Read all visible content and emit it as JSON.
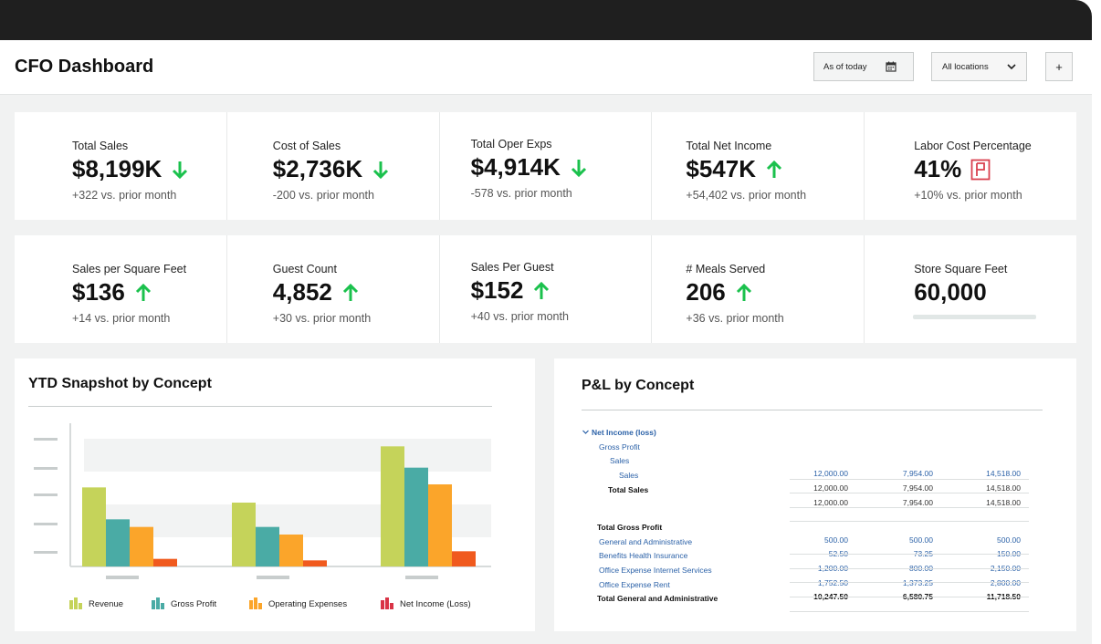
{
  "header": {
    "title": "CFO Dashboard",
    "date_filter": "As of today",
    "location_filter": "All locations",
    "add_label": "+"
  },
  "kpis_row1": [
    {
      "label": "Total Sales",
      "value": "$8,199K",
      "trend": "down",
      "sub": "+322 vs. prior month"
    },
    {
      "label": "Cost of Sales",
      "value": "$2,736K",
      "trend": "down",
      "sub": "-200 vs. prior month"
    },
    {
      "label": "Total Oper Exps",
      "value": "$4,914K",
      "trend": "down",
      "sub": "-578 vs. prior month"
    },
    {
      "label": "Total Net Income",
      "value": "$547K",
      "trend": "up",
      "sub": "+54,402 vs. prior month"
    },
    {
      "label": "Labor Cost Percentage",
      "value": "41%",
      "trend": "flag",
      "sub": "+10% vs. prior month"
    }
  ],
  "kpis_row2": [
    {
      "label": "Sales per Square Feet",
      "value": "$136",
      "trend": "up",
      "sub": "+14 vs. prior month"
    },
    {
      "label": "Guest Count",
      "value": "4,852",
      "trend": "up",
      "sub": "+30 vs. prior month"
    },
    {
      "label": "Sales Per Guest",
      "value": "$152",
      "trend": "up",
      "sub": "+40 vs. prior month"
    },
    {
      "label": "# Meals Served",
      "value": "206",
      "trend": "up",
      "sub": "+36 vs. prior month"
    },
    {
      "label": "Store Square Feet",
      "value": "60,000",
      "trend": "none",
      "sub": ""
    }
  ],
  "colors": {
    "trend_arrow": "#1bc14d",
    "flag": "#d9404e",
    "revenue": "#c5d35a",
    "gross_profit": "#4aaba5",
    "operating_expenses": "#fba52a",
    "net_income": "#f05a1e",
    "net_income_legend": "#d93446",
    "link_blue": "#2c62a8"
  },
  "ytd_panel": {
    "title": "YTD Snapshot by Concept"
  },
  "chart_data": {
    "type": "bar",
    "categories": [
      "",
      "",
      ""
    ],
    "series": [
      {
        "name": "Revenue",
        "values": [
          52,
          42,
          79
        ]
      },
      {
        "name": "Gross Profit",
        "values": [
          31,
          26,
          65
        ]
      },
      {
        "name": "Operating Expenses",
        "values": [
          26,
          21,
          54
        ]
      },
      {
        "name": "Net Income (Loss)",
        "values": [
          5,
          4,
          10
        ]
      }
    ],
    "ylim": [
      0,
      90
    ],
    "title": "",
    "xlabel": "",
    "ylabel": "",
    "grid": true,
    "legend": "bottom"
  },
  "pl_panel": {
    "title": "P&L by Concept",
    "rows": [
      {
        "label": "Net Income (loss)",
        "indent": 0,
        "style": "blue-bold",
        "expander": true,
        "values": []
      },
      {
        "label": "Gross Profit",
        "indent": 1,
        "style": "blue",
        "values": []
      },
      {
        "label": "Sales",
        "indent": 2,
        "style": "blue",
        "values": []
      },
      {
        "label": "Sales",
        "indent": 3,
        "style": "blue",
        "values": [
          "12,000.00",
          "7,954.00",
          "14,518.00"
        ]
      },
      {
        "label": "Total Sales",
        "indent": 2,
        "style": "bold",
        "values": [
          "12,000.00",
          "7,954.00",
          "14,518.00"
        ]
      },
      {
        "label": "",
        "indent": 0,
        "style": "plain",
        "values": [
          "12,000.00",
          "7,954.00",
          "14,518.00"
        ]
      },
      {
        "label": "Total Gross Profit",
        "indent": 1,
        "style": "bold",
        "values": []
      },
      {
        "label": "General and Administrative",
        "indent": 1,
        "style": "blue",
        "values": [
          "500.00",
          "500.00",
          "500.00"
        ]
      },
      {
        "label": "Benefits Health Insurance",
        "indent": 1,
        "style": "blue",
        "values": [
          "52.50",
          "73.25",
          "150.00"
        ]
      },
      {
        "label": "Office Expense Internet Services",
        "indent": 1,
        "style": "blue",
        "values": [
          "1,200.00",
          "800.00",
          "2,150.00"
        ]
      },
      {
        "label": "Office Expense Rent",
        "indent": 1,
        "style": "blue",
        "values": [
          "1,752.50",
          "1,373.25",
          "2,800.00"
        ]
      },
      {
        "label": "Total General and Administrative",
        "indent": 1,
        "style": "bold",
        "values": [
          "10,247.50",
          "6,580.75",
          "11,718.50"
        ]
      }
    ]
  }
}
